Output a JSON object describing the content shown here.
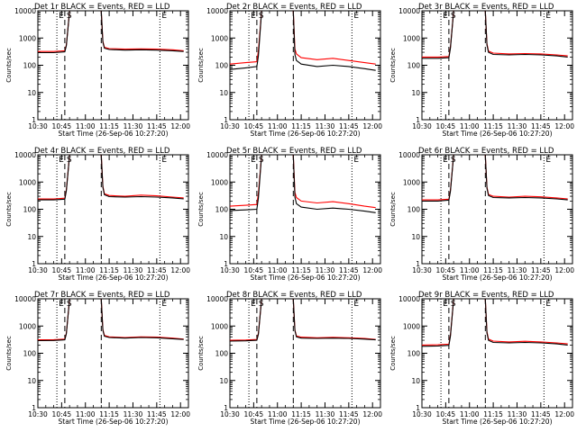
{
  "figure": {
    "time_ticks": [
      "10:30",
      "10:45",
      "11:00",
      "11:15",
      "11:30",
      "11:45",
      "12:00"
    ],
    "y_ticks": [
      "1",
      "10",
      "100",
      "1000",
      "10000"
    ],
    "ylabel": "Counts/sec",
    "xlabel": "Start Time (26-Sep-06 10:27:20)",
    "marker_labels": [
      "E",
      "S",
      "E"
    ],
    "colors": {
      "events": "#000000",
      "lld": "#ff0000"
    }
  },
  "chart_data": [
    {
      "title": "Det 1r BLACK = Events, RED = LLD",
      "type": "line",
      "x_unit": "UT time",
      "y_scale": "log",
      "ylim": [
        1,
        10000
      ],
      "xlim": [
        "10:30",
        "12:05"
      ],
      "x": [
        "10:30",
        "10:40",
        "10:47",
        "10:48",
        "10:50",
        "11:10",
        "11:11",
        "11:12",
        "11:15",
        "11:25",
        "11:35",
        "11:45",
        "11:55",
        "12:02"
      ],
      "series": [
        {
          "name": "Events",
          "values": [
            290,
            290,
            310,
            520,
            10000,
            10000,
            700,
            420,
            380,
            360,
            370,
            360,
            340,
            320
          ]
        },
        {
          "name": "LLD",
          "values": [
            320,
            320,
            340,
            560,
            10000,
            10000,
            760,
            460,
            410,
            390,
            400,
            390,
            370,
            340
          ]
        }
      ],
      "vlines_dotted": [
        "10:42",
        "11:47"
      ],
      "vlines_dashed": [
        "10:47",
        "11:10"
      ]
    },
    {
      "title": "Det 2r BLACK = Events, RED = LLD",
      "type": "line",
      "x_unit": "UT time",
      "y_scale": "log",
      "ylim": [
        1,
        10000
      ],
      "xlim": [
        "10:30",
        "12:05"
      ],
      "x": [
        "10:30",
        "10:40",
        "10:47",
        "10:48",
        "10:50",
        "11:10",
        "11:11",
        "11:12",
        "11:15",
        "11:25",
        "11:35",
        "11:45",
        "11:55",
        "12:02"
      ],
      "series": [
        {
          "name": "Events",
          "values": [
            70,
            80,
            90,
            220,
            10000,
            10000,
            250,
            150,
            110,
            90,
            100,
            90,
            75,
            65
          ]
        },
        {
          "name": "LLD",
          "values": [
            110,
            125,
            135,
            340,
            10000,
            10000,
            400,
            260,
            190,
            160,
            180,
            150,
            125,
            110
          ]
        }
      ],
      "vlines_dotted": [
        "10:42",
        "11:47"
      ],
      "vlines_dashed": [
        "10:47",
        "11:10"
      ]
    },
    {
      "title": "Det 3r BLACK = Events, RED = LLD",
      "type": "line",
      "x_unit": "UT time",
      "y_scale": "log",
      "ylim": [
        1,
        10000
      ],
      "xlim": [
        "10:30",
        "12:05"
      ],
      "x": [
        "10:30",
        "10:40",
        "10:47",
        "10:48",
        "10:50",
        "11:10",
        "11:11",
        "11:12",
        "11:15",
        "11:25",
        "11:35",
        "11:45",
        "11:55",
        "12:02"
      ],
      "series": [
        {
          "name": "Events",
          "values": [
            180,
            180,
            190,
            420,
            10000,
            10000,
            560,
            300,
            250,
            240,
            250,
            240,
            220,
            200
          ]
        },
        {
          "name": "LLD",
          "values": [
            200,
            200,
            210,
            460,
            10000,
            10000,
            620,
            330,
            280,
            260,
            270,
            260,
            240,
            220
          ]
        }
      ],
      "vlines_dotted": [
        "10:42",
        "11:47"
      ],
      "vlines_dashed": [
        "10:47",
        "11:10"
      ]
    },
    {
      "title": "Det 4r BLACK = Events, RED = LLD",
      "type": "line",
      "x_unit": "UT time",
      "y_scale": "log",
      "ylim": [
        1,
        10000
      ],
      "xlim": [
        "10:30",
        "12:05"
      ],
      "x": [
        "10:30",
        "10:40",
        "10:47",
        "10:48",
        "10:50",
        "11:10",
        "11:11",
        "11:12",
        "11:15",
        "11:25",
        "11:35",
        "11:45",
        "11:55",
        "12:02"
      ],
      "series": [
        {
          "name": "Events",
          "values": [
            220,
            220,
            235,
            480,
            10000,
            10000,
            640,
            340,
            290,
            280,
            290,
            280,
            260,
            240
          ]
        },
        {
          "name": "LLD",
          "values": [
            240,
            240,
            255,
            520,
            10000,
            10000,
            700,
            370,
            320,
            300,
            330,
            310,
            280,
            260
          ]
        }
      ],
      "vlines_dotted": [
        "10:42",
        "11:47"
      ],
      "vlines_dashed": [
        "10:47",
        "11:10"
      ]
    },
    {
      "title": "Det 5r BLACK = Events, RED = LLD",
      "type": "line",
      "x_unit": "UT time",
      "y_scale": "log",
      "ylim": [
        1,
        10000
      ],
      "xlim": [
        "10:30",
        "12:05"
      ],
      "x": [
        "10:30",
        "10:40",
        "10:47",
        "10:48",
        "10:50",
        "11:10",
        "11:11",
        "11:12",
        "11:15",
        "11:25",
        "11:35",
        "11:45",
        "11:55",
        "12:02"
      ],
      "series": [
        {
          "name": "Events",
          "values": [
            90,
            95,
            100,
            260,
            10000,
            10000,
            280,
            160,
            120,
            100,
            110,
            100,
            85,
            75
          ]
        },
        {
          "name": "LLD",
          "values": [
            130,
            140,
            150,
            380,
            10000,
            10000,
            420,
            270,
            200,
            170,
            190,
            160,
            130,
            115
          ]
        }
      ],
      "vlines_dotted": [
        "10:42",
        "11:47"
      ],
      "vlines_dashed": [
        "10:47",
        "11:10"
      ]
    },
    {
      "title": "Det 6r BLACK = Events, RED = LLD",
      "type": "line",
      "x_unit": "UT time",
      "y_scale": "log",
      "ylim": [
        1,
        10000
      ],
      "xlim": [
        "10:30",
        "12:05"
      ],
      "x": [
        "10:30",
        "10:40",
        "10:47",
        "10:48",
        "10:50",
        "11:10",
        "11:11",
        "11:12",
        "11:15",
        "11:25",
        "11:35",
        "11:45",
        "11:55",
        "12:02"
      ],
      "series": [
        {
          "name": "Events",
          "values": [
            200,
            200,
            215,
            450,
            10000,
            10000,
            600,
            320,
            270,
            260,
            270,
            260,
            240,
            220
          ]
        },
        {
          "name": "LLD",
          "values": [
            220,
            220,
            235,
            490,
            10000,
            10000,
            660,
            350,
            300,
            280,
            300,
            285,
            260,
            240
          ]
        }
      ],
      "vlines_dotted": [
        "10:42",
        "11:47"
      ],
      "vlines_dashed": [
        "10:47",
        "11:10"
      ]
    },
    {
      "title": "Det 7r BLACK = Events, RED = LLD",
      "type": "line",
      "x_unit": "UT time",
      "y_scale": "log",
      "ylim": [
        1,
        10000
      ],
      "xlim": [
        "10:30",
        "12:05"
      ],
      "x": [
        "10:30",
        "10:40",
        "10:47",
        "10:48",
        "10:50",
        "11:10",
        "11:11",
        "11:12",
        "11:15",
        "11:25",
        "11:35",
        "11:45",
        "11:55",
        "12:02"
      ],
      "series": [
        {
          "name": "Events",
          "values": [
            290,
            295,
            310,
            520,
            10000,
            10000,
            700,
            420,
            380,
            360,
            380,
            370,
            340,
            320
          ]
        },
        {
          "name": "LLD",
          "values": [
            310,
            315,
            330,
            550,
            10000,
            10000,
            740,
            450,
            400,
            380,
            400,
            390,
            360,
            330
          ]
        }
      ],
      "vlines_dotted": [
        "10:42",
        "11:47"
      ],
      "vlines_dashed": [
        "10:47",
        "11:10"
      ]
    },
    {
      "title": "Det 8r BLACK = Events, RED = LLD",
      "type": "line",
      "x_unit": "UT time",
      "y_scale": "log",
      "ylim": [
        1,
        10000
      ],
      "xlim": [
        "10:30",
        "12:05"
      ],
      "x": [
        "10:30",
        "10:40",
        "10:47",
        "10:48",
        "10:50",
        "11:10",
        "11:11",
        "11:12",
        "11:15",
        "11:25",
        "11:35",
        "11:45",
        "11:55",
        "12:02"
      ],
      "series": [
        {
          "name": "Events",
          "values": [
            280,
            285,
            300,
            500,
            10000,
            10000,
            680,
            400,
            360,
            350,
            360,
            350,
            330,
            310
          ]
        },
        {
          "name": "LLD",
          "values": [
            300,
            305,
            320,
            540,
            10000,
            10000,
            720,
            430,
            390,
            370,
            385,
            370,
            350,
            320
          ]
        }
      ],
      "vlines_dotted": [
        "10:42",
        "11:47"
      ],
      "vlines_dashed": [
        "10:47",
        "11:10"
      ]
    },
    {
      "title": "Det 9r BLACK = Events, RED = LLD",
      "type": "line",
      "x_unit": "UT time",
      "y_scale": "log",
      "ylim": [
        1,
        10000
      ],
      "xlim": [
        "10:30",
        "12:05"
      ],
      "x": [
        "10:30",
        "10:40",
        "10:47",
        "10:48",
        "10:50",
        "11:10",
        "11:11",
        "11:12",
        "11:15",
        "11:25",
        "11:35",
        "11:45",
        "11:55",
        "12:02"
      ],
      "series": [
        {
          "name": "Events",
          "values": [
            180,
            185,
            195,
            420,
            10000,
            10000,
            560,
            300,
            250,
            240,
            250,
            240,
            220,
            200
          ]
        },
        {
          "name": "LLD",
          "values": [
            200,
            205,
            215,
            460,
            10000,
            10000,
            620,
            330,
            280,
            260,
            275,
            260,
            240,
            220
          ]
        }
      ],
      "vlines_dotted": [
        "10:42",
        "11:47"
      ],
      "vlines_dashed": [
        "10:47",
        "11:10"
      ]
    }
  ]
}
